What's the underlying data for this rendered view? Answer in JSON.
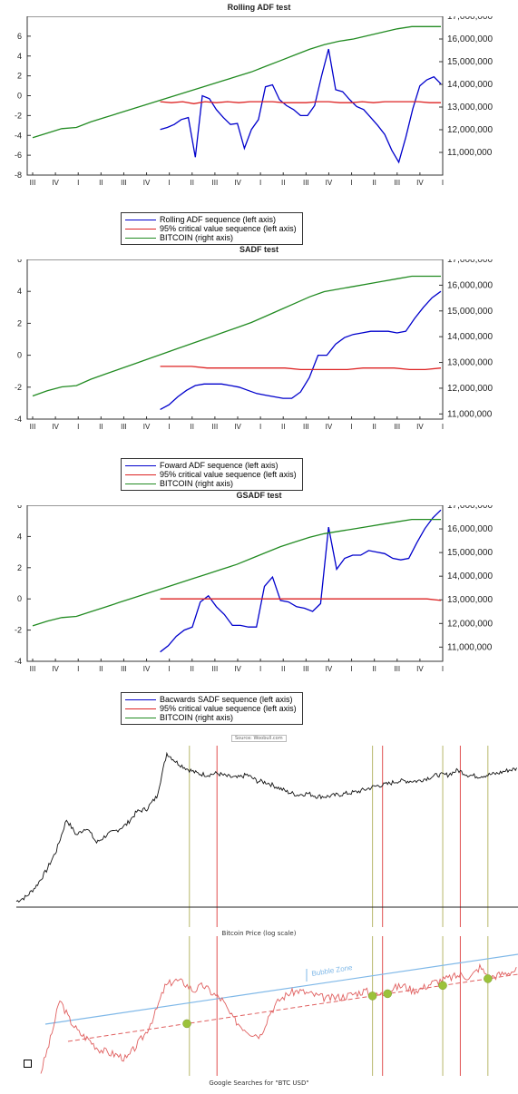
{
  "chart_data": [
    {
      "type": "line",
      "title": "Rolling ADF test",
      "x_period_labels": [
        "III",
        "IV",
        "I",
        "II",
        "III",
        "IV",
        "I",
        "II",
        "III",
        "IV",
        "I",
        "II",
        "III",
        "IV",
        "I",
        "II",
        "III",
        "IV",
        "I"
      ],
      "left_axis": {
        "ylim": [
          -8,
          8
        ],
        "ticks": [
          "-8",
          "-6",
          "-4",
          "-2",
          "0",
          "2",
          "4",
          "6"
        ]
      },
      "right_axis": {
        "ylim": [
          10000000,
          17000000
        ],
        "ticks": [
          "11,000,000",
          "12,000,000",
          "13,000,000",
          "14,000,000",
          "15,000,000",
          "16,000,000",
          "17,000,000"
        ]
      },
      "series": [
        {
          "name": "Rolling ADF sequence (left axis)",
          "axis": "left",
          "color": "#0000cc",
          "start_index": 5.6,
          "values": [
            -3.4,
            -3.2,
            -2.9,
            -2.4,
            -2.2,
            -6.2,
            0,
            -0.3,
            -1.4,
            -2.2,
            -2.9,
            -2.8,
            -5.3,
            -3.4,
            -2.4,
            0.9,
            1.1,
            -0.4,
            -1.0,
            -1.4,
            -2.0,
            -2.0,
            -1.0,
            2.0,
            4.7,
            0.6,
            0.4,
            -0.4,
            -1.1,
            -1.4,
            -2.2,
            -3.0,
            -3.9,
            -5.5,
            -6.7,
            -4.2,
            -1.3,
            1.0,
            1.6,
            1.9,
            1.2
          ]
        },
        {
          "name": "95% critical value sequence (left axis)",
          "axis": "left",
          "color": "#dd2222",
          "start_index": 5.6,
          "values": [
            -0.6,
            -0.7,
            -0.6,
            -0.8,
            -0.6,
            -0.7,
            -0.6,
            -0.7,
            -0.6,
            -0.6,
            -0.6,
            -0.7,
            -0.7,
            -0.7,
            -0.6,
            -0.6,
            -0.7,
            -0.7,
            -0.6,
            -0.7,
            -0.6,
            -0.6,
            -0.6,
            -0.6,
            -0.7,
            -0.7
          ]
        },
        {
          "name": "BITCOIN (right axis)",
          "axis": "right",
          "color": "#228b22",
          "start_index": 0,
          "values": [
            11650000,
            11850000,
            12050000,
            12100000,
            12350000,
            12550000,
            12750000,
            12950000,
            13150000,
            13350000,
            13550000,
            13750000,
            13950000,
            14150000,
            14350000,
            14550000,
            14800000,
            15050000,
            15300000,
            15550000,
            15750000,
            15900000,
            16000000,
            16150000,
            16300000,
            16450000,
            16550000,
            16550000,
            16550000
          ]
        }
      ]
    },
    {
      "type": "line",
      "title": "SADF test",
      "x_period_labels": [
        "III",
        "IV",
        "I",
        "II",
        "III",
        "IV",
        "I",
        "II",
        "III",
        "IV",
        "I",
        "II",
        "III",
        "IV",
        "I",
        "II",
        "III",
        "IV",
        "I"
      ],
      "left_axis": {
        "ylim": [
          -4,
          6
        ],
        "ticks": [
          "-4",
          "-2",
          "0",
          "2",
          "4",
          "6"
        ]
      },
      "right_axis": {
        "ylim": [
          10800000,
          17000000
        ],
        "ticks": [
          "11,000,000",
          "12,000,000",
          "13,000,000",
          "14,000,000",
          "15,000,000",
          "16,000,000",
          "17,000,000"
        ]
      },
      "series": [
        {
          "name": "Foward ADF sequence (left axis)",
          "axis": "left",
          "color": "#0000cc",
          "start_index": 5.6,
          "values": [
            -3.4,
            -3.1,
            -2.6,
            -2.2,
            -1.9,
            -1.8,
            -1.8,
            -1.8,
            -1.9,
            -2.0,
            -2.2,
            -2.4,
            -2.5,
            -2.6,
            -2.7,
            -2.7,
            -2.3,
            -1.4,
            0,
            0,
            0.7,
            1.1,
            1.3,
            1.4,
            1.5,
            1.5,
            1.5,
            1.4,
            1.5,
            2.3,
            3.0,
            3.6,
            4.0
          ]
        },
        {
          "name": "95% critical value sequence (left axis)",
          "axis": "left",
          "color": "#dd2222",
          "start_index": 5.6,
          "values": [
            -0.7,
            -0.7,
            -0.7,
            -0.8,
            -0.8,
            -0.8,
            -0.8,
            -0.8,
            -0.8,
            -0.9,
            -0.9,
            -0.9,
            -0.9,
            -0.8,
            -0.8,
            -0.8,
            -0.9,
            -0.9,
            -0.8
          ]
        },
        {
          "name": "BITCOIN (right axis)",
          "axis": "right",
          "color": "#228b22",
          "start_index": 0,
          "values": [
            11700000,
            11900000,
            12050000,
            12100000,
            12350000,
            12550000,
            12750000,
            12950000,
            13150000,
            13350000,
            13550000,
            13750000,
            13950000,
            14150000,
            14350000,
            14550000,
            14800000,
            15050000,
            15300000,
            15550000,
            15750000,
            15850000,
            15950000,
            16050000,
            16150000,
            16250000,
            16350000,
            16350000,
            16350000
          ]
        }
      ]
    },
    {
      "type": "line",
      "title": "GSADF test",
      "x_period_labels": [
        "III",
        "IV",
        "I",
        "II",
        "III",
        "IV",
        "I",
        "II",
        "III",
        "IV",
        "I",
        "II",
        "III",
        "IV",
        "I",
        "II",
        "III",
        "IV",
        "I"
      ],
      "left_axis": {
        "ylim": [
          -4,
          6
        ],
        "ticks": [
          "-4",
          "-2",
          "0",
          "2",
          "4",
          "6"
        ]
      },
      "right_axis": {
        "ylim": [
          10400000,
          17000000
        ],
        "ticks": [
          "11,000,000",
          "12,000,000",
          "13,000,000",
          "14,000,000",
          "15,000,000",
          "16,000,000",
          "17,000,000"
        ]
      },
      "series": [
        {
          "name": "Bacwards SADF sequence (left axis)",
          "axis": "left",
          "color": "#0000cc",
          "start_index": 5.6,
          "values": [
            -3.4,
            -3.0,
            -2.4,
            -2.0,
            -1.8,
            -0.2,
            0.2,
            -0.5,
            -1.0,
            -1.7,
            -1.7,
            -1.8,
            -1.8,
            0.8,
            1.4,
            -0.1,
            -0.2,
            -0.5,
            -0.6,
            -0.8,
            -0.3,
            4.6,
            1.9,
            2.6,
            2.8,
            2.8,
            3.1,
            3.0,
            2.9,
            2.6,
            2.5,
            2.6,
            3.6,
            4.5,
            5.2,
            5.7
          ]
        },
        {
          "name": "95% critical value sequence (left axis)",
          "axis": "left",
          "color": "#dd2222",
          "start_index": 5.6,
          "values": [
            0,
            0,
            0,
            0,
            0,
            0,
            0,
            0,
            0,
            0,
            0,
            0,
            0,
            0,
            0,
            0,
            0,
            0,
            0,
            0,
            -0.1
          ]
        },
        {
          "name": "BITCOIN (right axis)",
          "axis": "right",
          "color": "#228b22",
          "start_index": 0,
          "values": [
            11900000,
            12100000,
            12250000,
            12300000,
            12500000,
            12700000,
            12900000,
            13100000,
            13300000,
            13500000,
            13700000,
            13900000,
            14100000,
            14300000,
            14500000,
            14750000,
            15000000,
            15250000,
            15450000,
            15650000,
            15800000,
            15900000,
            16000000,
            16100000,
            16200000,
            16300000,
            16400000,
            16400000,
            16400000
          ]
        }
      ]
    },
    {
      "type": "line",
      "caption": "Bitcoin Price (log scale)",
      "series": [
        {
          "name": "",
          "color": "#111111",
          "values": [
            0.02,
            0.05,
            0.12,
            0.22,
            0.35,
            0.55,
            0.45,
            0.5,
            0.4,
            0.45,
            0.48,
            0.52,
            0.6,
            0.62,
            0.7,
            0.98,
            0.92,
            0.88,
            0.85,
            0.84,
            0.85,
            0.83,
            0.82,
            0.84,
            0.8,
            0.79,
            0.76,
            0.73,
            0.71,
            0.72,
            0.7,
            0.7,
            0.71,
            0.72,
            0.73,
            0.75,
            0.77,
            0.78,
            0.8,
            0.8,
            0.8,
            0.82,
            0.84,
            0.84,
            0.87,
            0.84,
            0.83,
            0.84,
            0.85,
            0.87,
            0.88
          ]
        }
      ],
      "red_vertical_lines_at": [
        0.4,
        0.73,
        0.885
      ],
      "olive_vertical_lines_at": [
        0.345,
        0.71,
        0.85,
        0.94
      ]
    },
    {
      "type": "line",
      "caption": "Google Searches for \"BTC USD\"",
      "annotation": "Bubble Zone",
      "series": [
        {
          "name": "",
          "color": "#e06060",
          "values": [
            0.0,
            0.25,
            0.55,
            0.4,
            0.3,
            0.25,
            0.18,
            0.15,
            0.13,
            0.1,
            0.2,
            0.3,
            0.45,
            0.65,
            0.7,
            0.68,
            0.62,
            0.66,
            0.6,
            0.55,
            0.42,
            0.35,
            0.3,
            0.28,
            0.45,
            0.55,
            0.6,
            0.62,
            0.6,
            0.58,
            0.56,
            0.57,
            0.58,
            0.6,
            0.62,
            0.58,
            0.6,
            0.64,
            0.66,
            0.62,
            0.64,
            0.68,
            0.7,
            0.72,
            0.74,
            0.72,
            0.8,
            0.72,
            0.74,
            0.76,
            0.78
          ]
        }
      ],
      "trend_lines": [
        "upper (blue, solid)",
        "lower (red, dashed)"
      ],
      "green_dot_positions": [
        0.34,
        0.71,
        0.74,
        0.85,
        0.94
      ],
      "red_vertical_lines_at": [
        0.4,
        0.73,
        0.885
      ],
      "olive_vertical_lines_at": [
        0.345,
        0.71,
        0.85,
        0.94
      ]
    }
  ],
  "source_text": "Source: Woobull.com"
}
